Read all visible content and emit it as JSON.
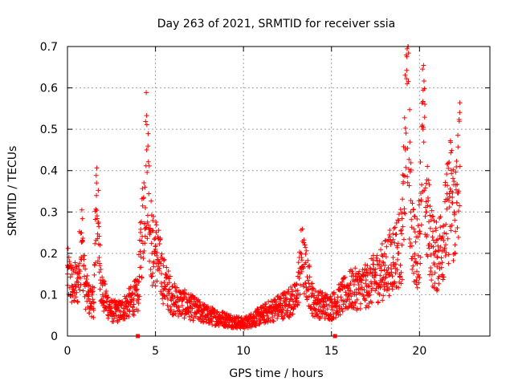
{
  "chart_data": {
    "type": "scatter",
    "title": "Day 263 of 2021, SRMTID for receiver ssia",
    "xlabel": "GPS time / hours",
    "ylabel": "SRMTID / TECUs",
    "xlim": [
      0,
      24
    ],
    "ylim": [
      0,
      0.7
    ],
    "xticks": [
      0,
      5,
      10,
      15,
      20
    ],
    "yticks": [
      0,
      0.1,
      0.2,
      0.3,
      0.4,
      0.5,
      0.6,
      0.7
    ],
    "xtick_labels": [
      "0",
      "5",
      "10",
      "15",
      "20"
    ],
    "ytick_labels": [
      "0",
      "0.1",
      "0.2",
      "0.3",
      "0.4",
      "0.5",
      "0.6",
      "0.7"
    ],
    "grid": true,
    "marker": "+",
    "color": "#ff0000",
    "series_summary": [
      {
        "x": 0.0,
        "y": 0.15
      },
      {
        "x": 0.3,
        "y": 0.12
      },
      {
        "x": 0.6,
        "y": 0.13
      },
      {
        "x": 0.8,
        "y": 0.25
      },
      {
        "x": 1.0,
        "y": 0.12
      },
      {
        "x": 1.2,
        "y": 0.09
      },
      {
        "x": 1.5,
        "y": 0.08
      },
      {
        "x": 1.65,
        "y": 0.37
      },
      {
        "x": 1.8,
        "y": 0.19
      },
      {
        "x": 2.0,
        "y": 0.1
      },
      {
        "x": 2.5,
        "y": 0.06
      },
      {
        "x": 3.0,
        "y": 0.06
      },
      {
        "x": 3.5,
        "y": 0.08
      },
      {
        "x": 4.0,
        "y": 0.1
      },
      {
        "x": 4.2,
        "y": 0.23
      },
      {
        "x": 4.4,
        "y": 0.36
      },
      {
        "x": 4.5,
        "y": 0.45
      },
      {
        "x": 4.8,
        "y": 0.2
      },
      {
        "x": 5.0,
        "y": 0.21
      },
      {
        "x": 5.5,
        "y": 0.13
      },
      {
        "x": 6.0,
        "y": 0.09
      },
      {
        "x": 7.0,
        "y": 0.07
      },
      {
        "x": 8.0,
        "y": 0.05
      },
      {
        "x": 9.0,
        "y": 0.04
      },
      {
        "x": 10.0,
        "y": 0.03
      },
      {
        "x": 11.0,
        "y": 0.05
      },
      {
        "x": 12.0,
        "y": 0.07
      },
      {
        "x": 13.0,
        "y": 0.09
      },
      {
        "x": 13.3,
        "y": 0.19
      },
      {
        "x": 14.0,
        "y": 0.08
      },
      {
        "x": 15.0,
        "y": 0.07
      },
      {
        "x": 16.0,
        "y": 0.11
      },
      {
        "x": 17.0,
        "y": 0.12
      },
      {
        "x": 18.0,
        "y": 0.16
      },
      {
        "x": 18.5,
        "y": 0.19
      },
      {
        "x": 19.0,
        "y": 0.22
      },
      {
        "x": 19.2,
        "y": 0.45
      },
      {
        "x": 19.3,
        "y": 0.61
      },
      {
        "x": 19.5,
        "y": 0.3
      },
      {
        "x": 19.8,
        "y": 0.18
      },
      {
        "x": 20.0,
        "y": 0.25
      },
      {
        "x": 20.2,
        "y": 0.5
      },
      {
        "x": 20.4,
        "y": 0.3
      },
      {
        "x": 20.8,
        "y": 0.2
      },
      {
        "x": 21.0,
        "y": 0.19
      },
      {
        "x": 21.5,
        "y": 0.27
      },
      {
        "x": 21.8,
        "y": 0.35
      },
      {
        "x": 22.0,
        "y": 0.28
      },
      {
        "x": 22.3,
        "y": 0.41
      }
    ],
    "axis_markers": [
      4.0,
      15.2
    ]
  }
}
